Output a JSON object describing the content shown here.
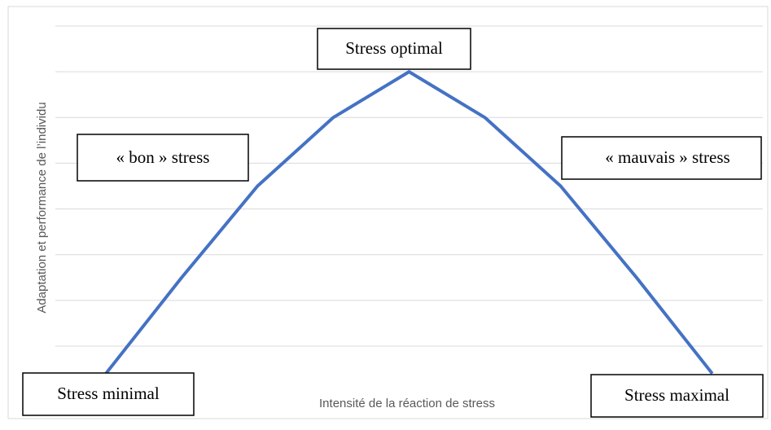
{
  "chart_data": {
    "type": "line",
    "x_label": "Intensité de la réaction de stress",
    "y_label": "Adaptation et performance de l’individu",
    "categories": [
      null,
      null,
      null,
      null,
      null,
      null,
      null,
      null,
      null
    ],
    "series": [
      {
        "name": null,
        "color": "#4472c4",
        "values": [
          0.4,
          2.5,
          4.5,
          6,
          7,
          6,
          4.5,
          2.5,
          0.4
        ]
      }
    ],
    "ylim": [
      0,
      8
    ],
    "yticks": [
      1,
      2,
      3,
      4,
      5,
      6,
      7,
      8
    ],
    "grid": true,
    "annotations": [
      "Stress optimal",
      "« bon » stress",
      "« mauvais » stress",
      "Stress minimal",
      "Stress maximal"
    ]
  }
}
